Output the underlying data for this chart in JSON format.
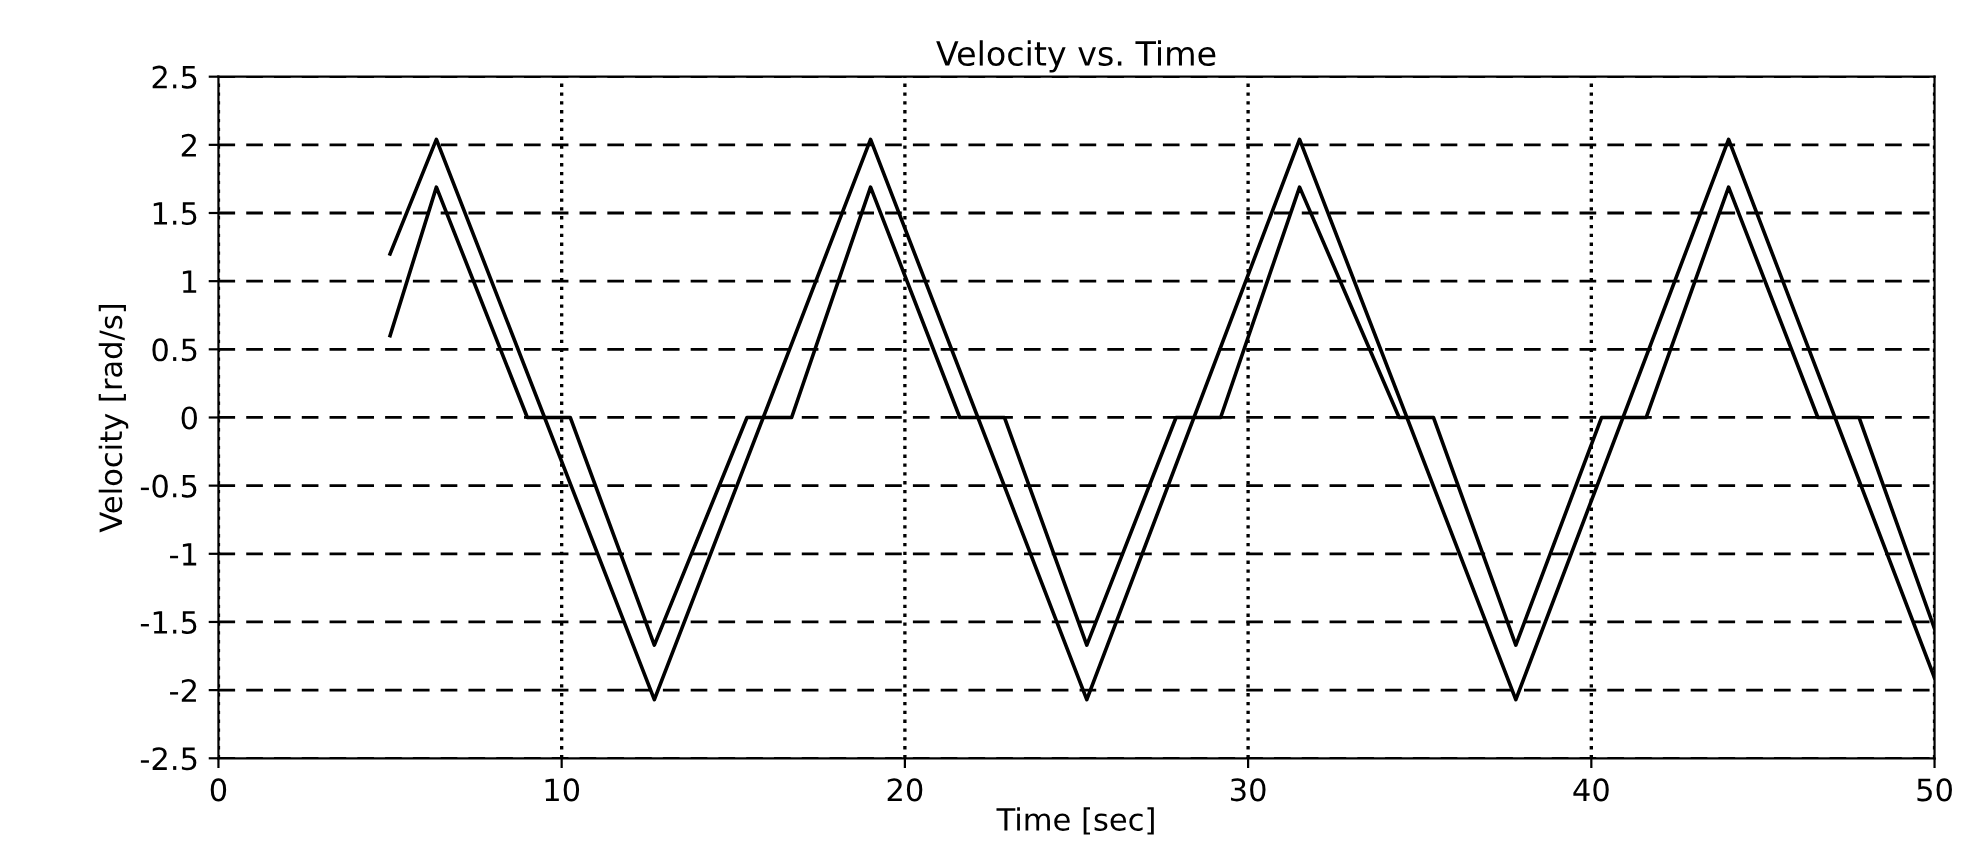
{
  "chart_data": {
    "type": "line",
    "title": "Velocity vs. Time",
    "xlabel": "Time [sec]",
    "ylabel": "Velocity [rad/s]",
    "series": [
      {
        "color": "#000000",
        "x": [
          5,
          6.35,
          12.7,
          19.0,
          25.3,
          31.5,
          37.8,
          44.0,
          50
        ],
        "values": [
          1.2,
          2.04,
          -2.07,
          2.04,
          -2.07,
          2.04,
          -2.07,
          2.04,
          -1.91
        ]
      },
      {
        "color": "#000000",
        "x": [
          5,
          6.35,
          9.0,
          10.25,
          12.7,
          15.4,
          16.7,
          19.0,
          21.6,
          22.9,
          25.3,
          27.9,
          29.2,
          31.5,
          34.4,
          35.4,
          37.8,
          40.3,
          41.6,
          44.0,
          46.6,
          47.8,
          50
        ],
        "values": [
          0.6,
          1.69,
          0,
          0,
          -1.67,
          0,
          0,
          1.69,
          0,
          0,
          -1.67,
          0,
          0,
          1.69,
          0,
          0,
          -1.67,
          0,
          0,
          1.69,
          0,
          0,
          -1.55
        ]
      }
    ],
    "xlim": [
      0,
      50
    ],
    "xticks": [
      0,
      10,
      20,
      30,
      40,
      50
    ],
    "ylim": [
      -2.5,
      2.5
    ],
    "yticks": [
      -2.5,
      -2,
      -1.5,
      -1,
      -0.5,
      0,
      0.5,
      1,
      1.5,
      2,
      2.5
    ],
    "grid": true,
    "line_style": "solid",
    "marker": "none"
  }
}
